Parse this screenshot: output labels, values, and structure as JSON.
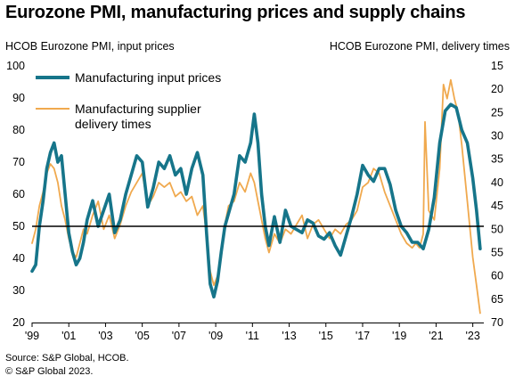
{
  "title": "Eurozone PMI, manufacturing prices and supply chains",
  "left_axis_title": "HCOB Eurozone PMI, input prices",
  "right_axis_title": "HCOB Eurozone PMI, delivery times",
  "source": "Source: S&P Global, HCOB.",
  "copyright": "© S&P Global 2023.",
  "colors": {
    "input_prices": "#16758a",
    "delivery_times": "#f0a94e",
    "reference_line": "#000000"
  },
  "chart_data": {
    "type": "line",
    "title": "Eurozone PMI, manufacturing prices and supply chains",
    "ylabel_left": "HCOB Eurozone PMI, input prices",
    "ylabel_right": "HCOB Eurozone PMI, delivery times",
    "ylim_left": [
      20,
      100
    ],
    "ylim_right": [
      70,
      15
    ],
    "right_axis_inverted": true,
    "xlim": [
      1999.0,
      2023.6
    ],
    "x_tick_labels": [
      "'99",
      "'01",
      "'03",
      "'05",
      "'07",
      "'09",
      "'11",
      "'13",
      "'15",
      "'17",
      "'19",
      "'21",
      "'23"
    ],
    "x_tick_values": [
      1999,
      2001,
      2003,
      2005,
      2007,
      2009,
      2011,
      2013,
      2015,
      2017,
      2019,
      2021,
      2023
    ],
    "y_left_ticks": [
      20,
      30,
      40,
      50,
      60,
      70,
      80,
      90,
      100
    ],
    "y_right_ticks": [
      15,
      20,
      25,
      30,
      35,
      40,
      45,
      50,
      55,
      60,
      65,
      70
    ],
    "reference_line": 50,
    "legend_position": "top-left",
    "grid": false,
    "series": [
      {
        "name": "Manufacturing input prices",
        "axis": "left",
        "x": [
          1999.0,
          1999.2,
          1999.4,
          1999.6,
          1999.8,
          2000.0,
          2000.2,
          2000.4,
          2000.6,
          2000.8,
          2001.0,
          2001.2,
          2001.4,
          2001.6,
          2001.8,
          2002.0,
          2002.3,
          2002.6,
          2002.9,
          2003.2,
          2003.5,
          2003.8,
          2004.1,
          2004.4,
          2004.7,
          2005.0,
          2005.3,
          2005.6,
          2005.9,
          2006.2,
          2006.5,
          2006.8,
          2007.1,
          2007.4,
          2007.7,
          2008.0,
          2008.3,
          2008.5,
          2008.7,
          2008.9,
          2009.1,
          2009.3,
          2009.5,
          2009.7,
          2010.0,
          2010.3,
          2010.6,
          2010.9,
          2011.1,
          2011.3,
          2011.5,
          2011.7,
          2011.9,
          2012.2,
          2012.5,
          2012.8,
          2013.1,
          2013.4,
          2013.7,
          2014.0,
          2014.3,
          2014.6,
          2014.9,
          2015.2,
          2015.5,
          2015.8,
          2016.1,
          2016.4,
          2016.7,
          2017.0,
          2017.3,
          2017.6,
          2017.9,
          2018.2,
          2018.5,
          2018.8,
          2019.1,
          2019.4,
          2019.7,
          2020.0,
          2020.3,
          2020.6,
          2020.9,
          2021.2,
          2021.5,
          2021.8,
          2022.1,
          2022.4,
          2022.7,
          2023.0,
          2023.2,
          2023.4
        ],
        "values": [
          36,
          38,
          50,
          58,
          68,
          73,
          76,
          70,
          72,
          60,
          48,
          42,
          38,
          40,
          45,
          52,
          58,
          50,
          55,
          60,
          48,
          52,
          60,
          66,
          72,
          70,
          56,
          62,
          70,
          68,
          72,
          66,
          68,
          60,
          68,
          73,
          66,
          48,
          32,
          28,
          33,
          42,
          50,
          54,
          60,
          72,
          70,
          76,
          85,
          76,
          60,
          50,
          44,
          53,
          45,
          55,
          50,
          49,
          48,
          52,
          51,
          47,
          46,
          48,
          44,
          41,
          47,
          53,
          60,
          69,
          66,
          64,
          68,
          68,
          63,
          55,
          50,
          48,
          45,
          45,
          43,
          49,
          59,
          76,
          86,
          88,
          87,
          80,
          76,
          65,
          55,
          43
        ]
      },
      {
        "name": "Manufacturing supplier delivery times",
        "axis": "right",
        "x": [
          1999.0,
          1999.2,
          1999.4,
          1999.6,
          1999.8,
          2000.0,
          2000.2,
          2000.4,
          2000.6,
          2000.8,
          2001.0,
          2001.2,
          2001.4,
          2001.6,
          2001.8,
          2002.0,
          2002.3,
          2002.6,
          2002.9,
          2003.2,
          2003.5,
          2003.8,
          2004.1,
          2004.4,
          2004.7,
          2005.0,
          2005.3,
          2005.6,
          2005.9,
          2006.2,
          2006.5,
          2006.8,
          2007.1,
          2007.4,
          2007.7,
          2008.0,
          2008.3,
          2008.5,
          2008.7,
          2008.9,
          2009.1,
          2009.3,
          2009.5,
          2009.7,
          2010.0,
          2010.3,
          2010.6,
          2010.9,
          2011.1,
          2011.3,
          2011.5,
          2011.7,
          2011.9,
          2012.2,
          2012.5,
          2012.8,
          2013.1,
          2013.4,
          2013.7,
          2014.0,
          2014.3,
          2014.6,
          2014.9,
          2015.2,
          2015.5,
          2015.8,
          2016.1,
          2016.4,
          2016.7,
          2017.0,
          2017.3,
          2017.6,
          2017.9,
          2018.2,
          2018.5,
          2018.8,
          2019.1,
          2019.4,
          2019.7,
          2019.9,
          2020.1,
          2020.3,
          2020.4,
          2020.6,
          2020.9,
          2021.2,
          2021.4,
          2021.6,
          2021.8,
          2022.0,
          2022.2,
          2022.4,
          2022.7,
          2023.0,
          2023.2,
          2023.4
        ],
        "values": [
          53,
          50,
          45,
          42,
          38,
          36,
          37,
          40,
          45,
          48,
          52,
          55,
          56,
          53,
          50,
          51,
          47,
          44,
          50,
          47,
          52,
          49,
          45,
          42,
          40,
          38,
          45,
          43,
          40,
          41,
          40,
          43,
          42,
          44,
          43,
          47,
          45,
          51,
          59,
          62,
          60,
          56,
          49,
          45,
          44,
          40,
          42,
          38,
          40,
          44,
          48,
          52,
          55,
          51,
          53,
          50,
          51,
          49,
          47,
          52,
          49,
          48,
          50,
          52,
          50,
          51,
          49,
          48,
          46,
          41,
          40,
          37,
          38,
          42,
          45,
          48,
          51,
          53,
          54,
          53,
          54,
          51,
          27,
          46,
          48,
          37,
          19,
          22,
          18,
          22,
          25,
          32,
          44,
          56,
          62,
          68
        ]
      }
    ]
  }
}
